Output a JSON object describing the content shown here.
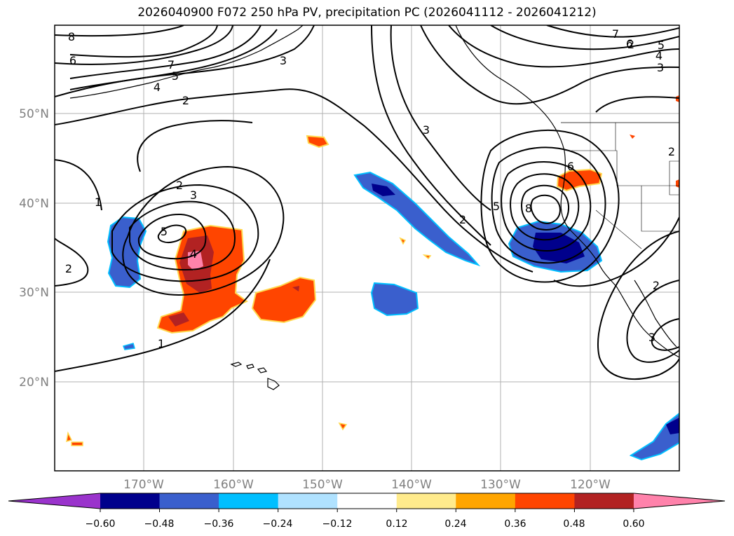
{
  "title": "2026040900 F072 250 hPa PV, precipitation PC (2026041112 - 2026041212)",
  "lat_labels": [
    "50°N",
    "40°N",
    "30°N",
    "20°N"
  ],
  "lon_labels": [
    "170°W",
    "160°W",
    "150°W",
    "140°W",
    "130°W",
    "120°W"
  ],
  "contour_labels": [
    "8",
    "6",
    "7",
    "4",
    "5",
    "3",
    "2",
    "1",
    "2",
    "3",
    "2",
    "5",
    "4",
    "1",
    "2",
    "3",
    "2",
    "5",
    "8",
    "6",
    "7",
    "6",
    "5",
    "4",
    "3",
    "2",
    "3",
    "2"
  ],
  "colorbar": {
    "ticks": [
      "−0.60",
      "−0.48",
      "−0.36",
      "−0.24",
      "−0.12",
      "0.12",
      "0.24",
      "0.36",
      "0.48",
      "0.60"
    ],
    "colors": [
      "#9a33cc",
      "#00008c",
      "#3a5fcd",
      "#00bfff",
      "#b0e2ff",
      "#ffffff",
      "#ffeb8c",
      "#ffa500",
      "#ff4500",
      "#b22222",
      "#ff82ab"
    ]
  }
}
